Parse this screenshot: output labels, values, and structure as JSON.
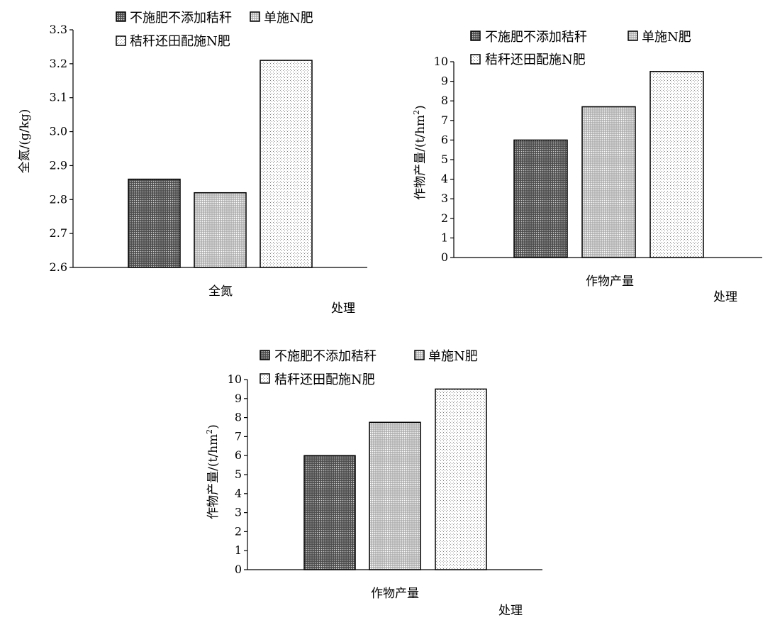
{
  "chart_data": [
    {
      "type": "bar",
      "categories": [
        "全氮"
      ],
      "series": [
        {
          "name": "不施肥不添加秸秆",
          "values": [
            2.86
          ],
          "pattern": "dark"
        },
        {
          "name": "单施N肥",
          "values": [
            2.82
          ],
          "pattern": "medium"
        },
        {
          "name": "秸秆还田配施N肥",
          "values": [
            3.21
          ],
          "pattern": "light"
        }
      ],
      "xlabel": "处理",
      "ylabel": "全氮/(g/kg)",
      "ylim": [
        2.6,
        3.3
      ],
      "yticks": [
        "2.6",
        "2.7",
        "2.8",
        "2.9",
        "3.0",
        "3.1",
        "3.2",
        "3.3"
      ],
      "grid": false,
      "legend_placement": "top"
    },
    {
      "type": "bar",
      "categories": [
        "作物产量"
      ],
      "series": [
        {
          "name": "不施肥不添加秸秆",
          "values": [
            6.0
          ],
          "pattern": "dark"
        },
        {
          "name": "单施N肥",
          "values": [
            7.7
          ],
          "pattern": "medium"
        },
        {
          "name": "秸秆还田配施N肥",
          "values": [
            9.5
          ],
          "pattern": "light"
        }
      ],
      "xlabel": "处理",
      "ylabel": "作物产量/(t/hm",
      "ylabel_superscript": "2",
      "ylabel_suffix": ")",
      "ylim": [
        0,
        10
      ],
      "yticks": [
        "0",
        "1",
        "2",
        "3",
        "4",
        "5",
        "6",
        "7",
        "8",
        "9",
        "10"
      ],
      "grid": false,
      "legend_placement": "top"
    },
    {
      "type": "bar",
      "categories": [
        "作物产量"
      ],
      "series": [
        {
          "name": "不施肥不添加秸秆",
          "values": [
            6.0
          ],
          "pattern": "dark"
        },
        {
          "name": "单施N肥",
          "values": [
            7.75
          ],
          "pattern": "medium"
        },
        {
          "name": "秸秆还田配施N肥",
          "values": [
            9.5
          ],
          "pattern": "light"
        }
      ],
      "xlabel": "处理",
      "ylabel": "作物产量/(t/hm",
      "ylabel_superscript": "2",
      "ylabel_suffix": ")",
      "ylim": [
        0,
        10
      ],
      "yticks": [
        "0",
        "1",
        "2",
        "3",
        "4",
        "5",
        "6",
        "7",
        "8",
        "9",
        "10"
      ],
      "grid": false,
      "legend_placement": "top"
    }
  ]
}
